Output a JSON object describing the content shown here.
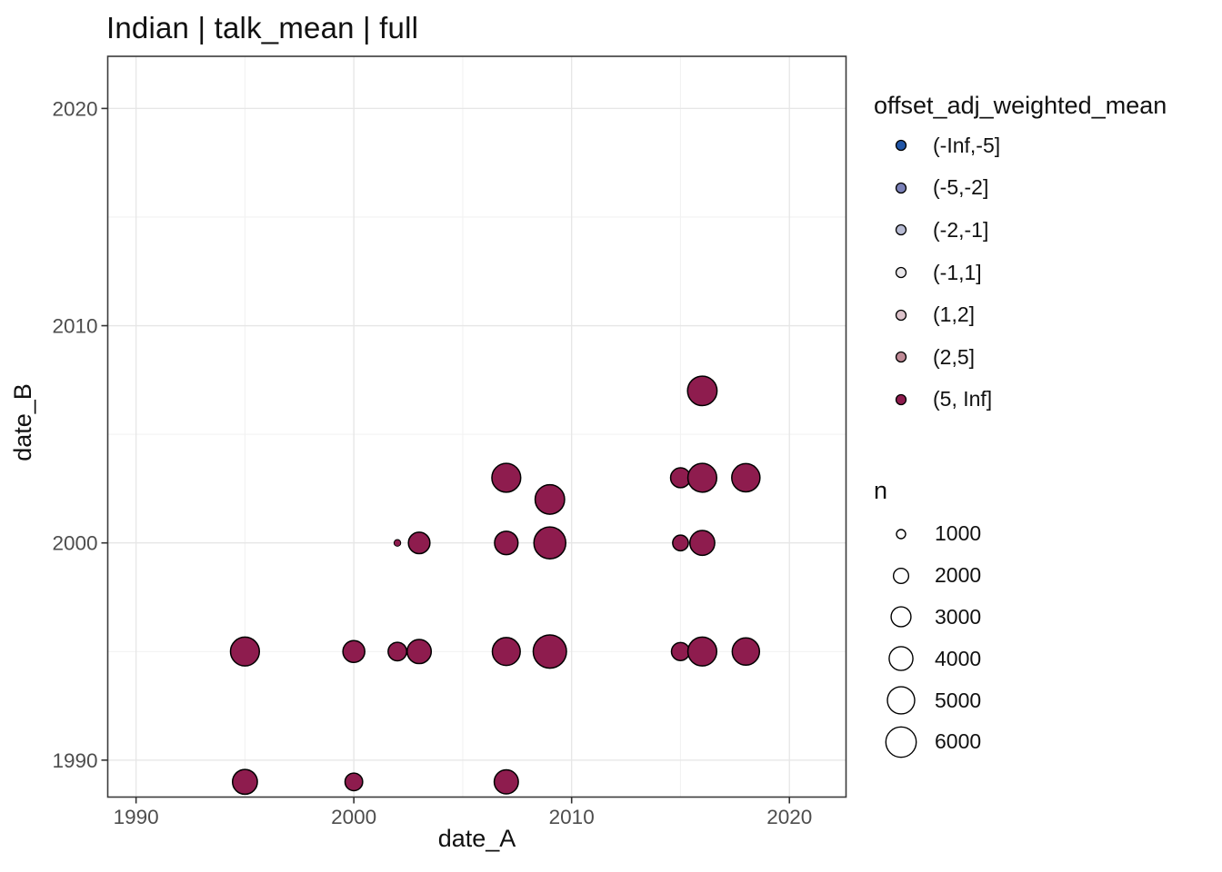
{
  "chart_data": {
    "type": "scatter",
    "title": "Indian | talk_mean | full",
    "xlabel": "date_A",
    "ylabel": "date_B",
    "xlim": [
      1988.7,
      2022.6
    ],
    "ylim": [
      1988.3,
      2022.4
    ],
    "x_major_ticks": [
      1990,
      2000,
      2010,
      2020
    ],
    "y_major_ticks": [
      1990,
      2000,
      2010,
      2020
    ],
    "x_minor_ticks": [
      1995,
      2005,
      2015
    ],
    "y_minor_ticks": [
      1995,
      2005,
      2015
    ],
    "grid": true,
    "legend_position": "right",
    "points": [
      {
        "date_A": 1995,
        "date_B": 1989,
        "n": 4300,
        "offset_bin": "(5, Inf]"
      },
      {
        "date_A": 2000,
        "date_B": 1989,
        "n": 2500,
        "offset_bin": "(5, Inf]"
      },
      {
        "date_A": 2007,
        "date_B": 1989,
        "n": 4100,
        "offset_bin": "(5, Inf]"
      },
      {
        "date_A": 1995,
        "date_B": 1995,
        "n": 5500,
        "offset_bin": "(5, Inf]"
      },
      {
        "date_A": 2000,
        "date_B": 1995,
        "n": 3500,
        "offset_bin": "(5, Inf]"
      },
      {
        "date_A": 2002,
        "date_B": 1995,
        "n": 2700,
        "offset_bin": "(5, Inf]"
      },
      {
        "date_A": 2003,
        "date_B": 1995,
        "n": 4100,
        "offset_bin": "(5, Inf]"
      },
      {
        "date_A": 2007,
        "date_B": 1995,
        "n": 5200,
        "offset_bin": "(5, Inf]"
      },
      {
        "date_A": 2009,
        "date_B": 1995,
        "n": 7000,
        "offset_bin": "(5, Inf]"
      },
      {
        "date_A": 2015,
        "date_B": 1995,
        "n": 2600,
        "offset_bin": "(5, Inf]"
      },
      {
        "date_A": 2016,
        "date_B": 1995,
        "n": 5500,
        "offset_bin": "(5, Inf]"
      },
      {
        "date_A": 2018,
        "date_B": 1995,
        "n": 5000,
        "offset_bin": "(5, Inf]"
      },
      {
        "date_A": 2002,
        "date_B": 2000,
        "n": 700,
        "offset_bin": "(5, Inf]"
      },
      {
        "date_A": 2003,
        "date_B": 2000,
        "n": 3400,
        "offset_bin": "(5, Inf]"
      },
      {
        "date_A": 2007,
        "date_B": 2000,
        "n": 3900,
        "offset_bin": "(5, Inf]"
      },
      {
        "date_A": 2009,
        "date_B": 2000,
        "n": 6500,
        "offset_bin": "(5, Inf]"
      },
      {
        "date_A": 2015,
        "date_B": 2000,
        "n": 2100,
        "offset_bin": "(5, Inf]"
      },
      {
        "date_A": 2016,
        "date_B": 2000,
        "n": 4300,
        "offset_bin": "(5, Inf]"
      },
      {
        "date_A": 2009,
        "date_B": 2002,
        "n": 5700,
        "offset_bin": "(5, Inf]"
      },
      {
        "date_A": 2007,
        "date_B": 2003,
        "n": 5500,
        "offset_bin": "(5, Inf]"
      },
      {
        "date_A": 2015,
        "date_B": 2003,
        "n": 3000,
        "offset_bin": "(5, Inf]"
      },
      {
        "date_A": 2016,
        "date_B": 2003,
        "n": 5500,
        "offset_bin": "(5, Inf]"
      },
      {
        "date_A": 2018,
        "date_B": 2003,
        "n": 5300,
        "offset_bin": "(5, Inf]"
      },
      {
        "date_A": 2016,
        "date_B": 2007,
        "n": 5700,
        "offset_bin": "(5, Inf]"
      }
    ]
  },
  "legends": {
    "color": {
      "title": "offset_adj_weighted_mean",
      "items": [
        {
          "label": "(-Inf,-5]",
          "color": "#2155a6"
        },
        {
          "label": "(-5,-2]",
          "color": "#7b81b8"
        },
        {
          "label": "(-2,-1]",
          "color": "#b7bbd3"
        },
        {
          "label": "(-1,1]",
          "color": "#e9e7ea"
        },
        {
          "label": "(1,2]",
          "color": "#dcc2ca"
        },
        {
          "label": "(2,5]",
          "color": "#bf8a96"
        },
        {
          "label": "(5, Inf]",
          "color": "#8e1c4e"
        }
      ]
    },
    "size": {
      "title": "n",
      "items": [
        {
          "label": "1000",
          "n": 1000
        },
        {
          "label": "2000",
          "n": 2000
        },
        {
          "label": "3000",
          "n": 3000
        },
        {
          "label": "4000",
          "n": 4000
        },
        {
          "label": "5000",
          "n": 5000
        },
        {
          "label": "6000",
          "n": 6000
        }
      ]
    }
  },
  "colors": {
    "background": "#ffffff",
    "point_fill": "#8e1c4e",
    "point_stroke": "#000000",
    "panel_border": "#3a3a3a",
    "grid_major": "#e6e6e6",
    "grid_minor": "#f2f2f2",
    "tick_label": "#4d4d4d",
    "text": "#111111"
  }
}
